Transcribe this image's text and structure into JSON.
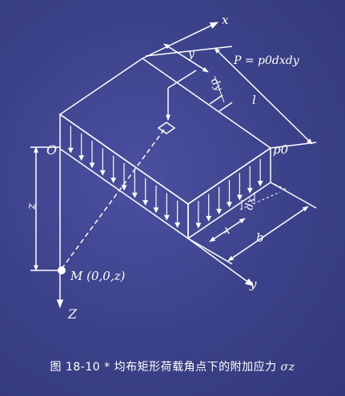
{
  "labels": {
    "axis_x": "x",
    "axis_y": "y",
    "axis_z": "Z",
    "origin": "O",
    "depth": "z",
    "point_m": "M (0,0,z)",
    "load_formula": "P = p0dxdy",
    "pressure": "p0",
    "y_dim": "y",
    "dy_dim": "dy",
    "l_dim": "l",
    "x_dim": "x",
    "dx_dim": "dx",
    "b_dim": "b"
  },
  "caption": {
    "figure_no": "图 18-10 *",
    "text": "均布矩形荷载角点下的附加应力",
    "symbol": "σz"
  },
  "colors": {
    "background": "#3a3f86",
    "lines": "#ffffff",
    "point_m": "#ffffff"
  }
}
